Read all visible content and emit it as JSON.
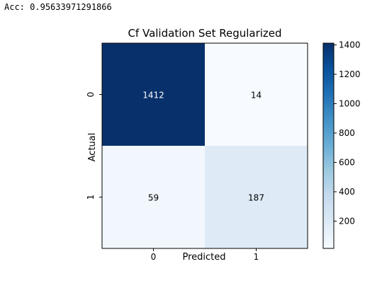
{
  "output": {
    "label": "Acc:",
    "value": "0.95633971291866"
  },
  "chart_data": {
    "type": "heatmap",
    "title": "Cf Validation Set Regularized",
    "xlabel": "Predicted",
    "ylabel": "Actual",
    "x_categories": [
      "0",
      "1"
    ],
    "y_categories": [
      "0",
      "1"
    ],
    "matrix": [
      [
        1412,
        14
      ],
      [
        59,
        187
      ]
    ],
    "colormap": "Blues",
    "colorbar": {
      "min": 14,
      "max": 1412,
      "ticks": [
        200,
        400,
        600,
        800,
        1000,
        1200,
        1400
      ],
      "colors": [
        "#f7fbff",
        "#deebf7",
        "#c6dbef",
        "#9ecae1",
        "#6baed6",
        "#4292c6",
        "#2171b5",
        "#08519c",
        "#08306b"
      ]
    },
    "text_colors": {
      "light": "#ffffff",
      "dark": "#000000"
    }
  }
}
